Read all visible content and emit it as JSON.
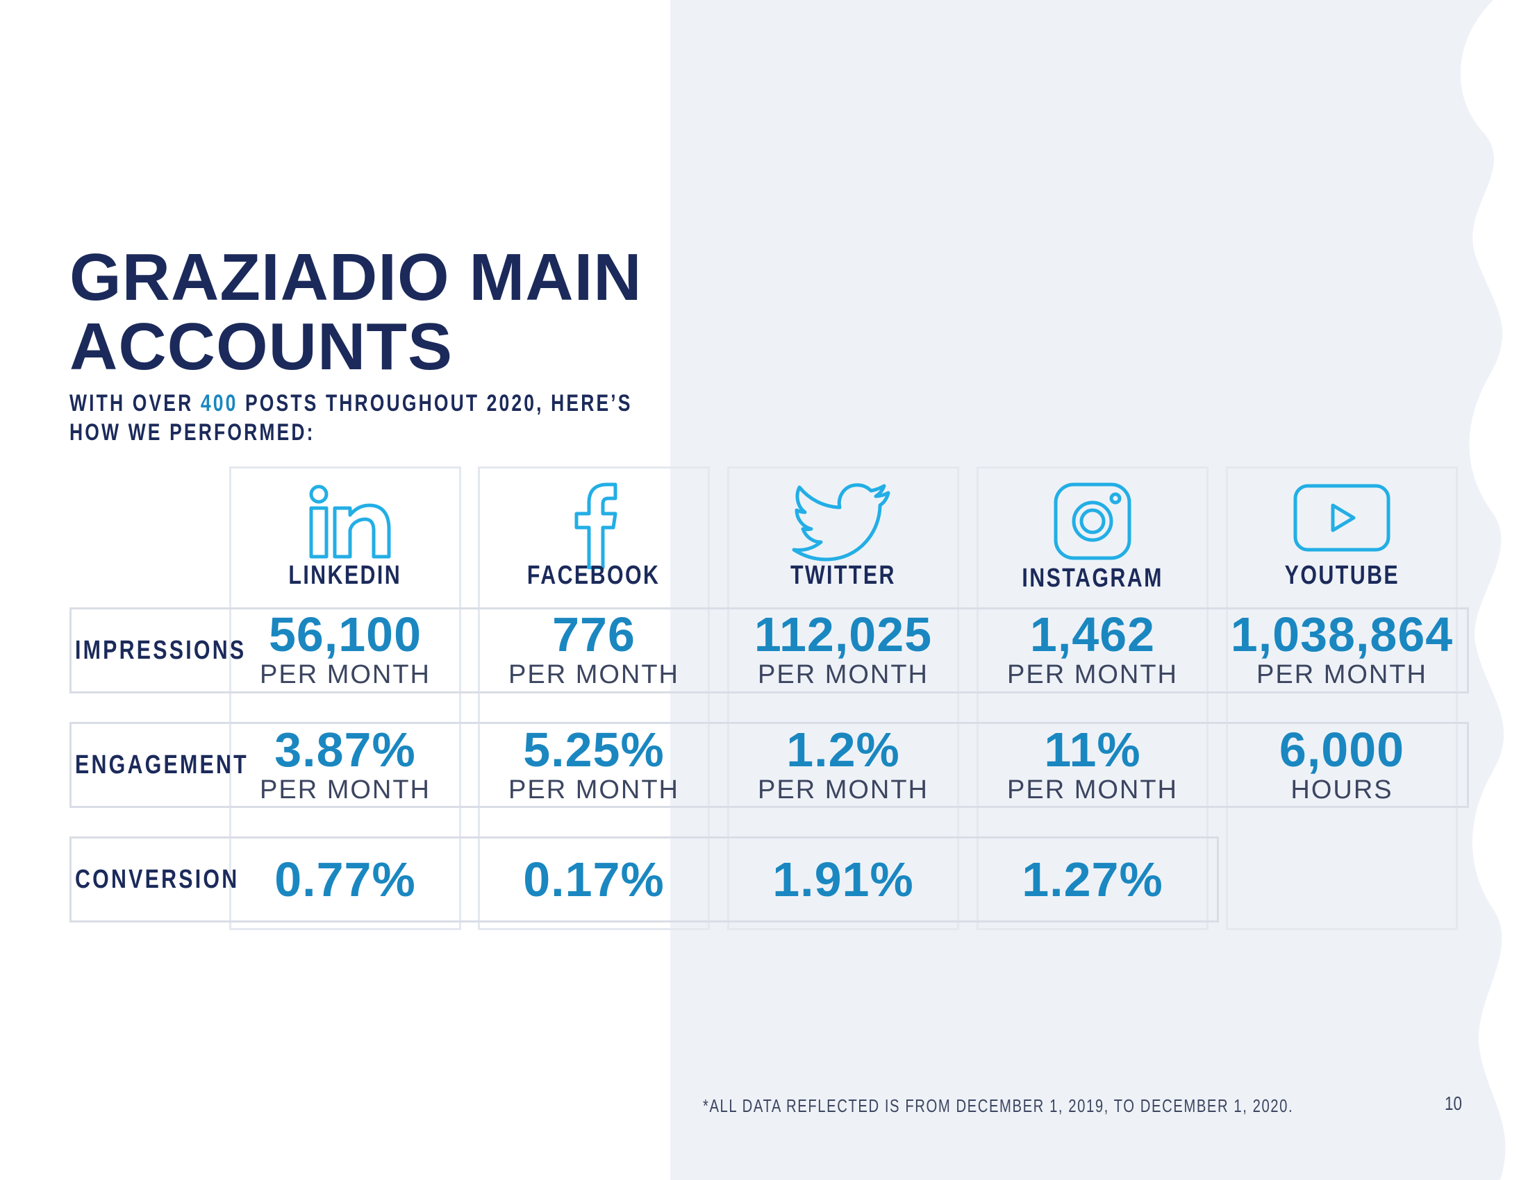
{
  "title": {
    "line1": "GRAZIADIO MAIN",
    "line2": "ACCOUNTS"
  },
  "subtitle": {
    "line1_pre": "WITH OVER",
    "line1_number": "400",
    "line1_post": "POSTS THROUGHOUT 2020, HERE’S",
    "line2": "HOW WE PERFORMED:"
  },
  "colors": {
    "navy": "#1b2a5a",
    "accent": "#1a87c0",
    "panel": "#eef2f7",
    "icon": "#23aee5"
  },
  "platforms": [
    {
      "name": "LINKEDIN",
      "icon": "linkedin-icon"
    },
    {
      "name": "FACEBOOK",
      "icon": "facebook-icon"
    },
    {
      "name": "TWITTER",
      "icon": "twitter-icon"
    },
    {
      "name": "INSTAGRAM",
      "icon": "instagram-icon"
    },
    {
      "name": "YOUTUBE",
      "icon": "youtube-icon"
    }
  ],
  "rows": {
    "impressions": {
      "label": "IMPRESSIONS",
      "cells": [
        {
          "value": "56,100",
          "unit": "PER MONTH"
        },
        {
          "value": "776",
          "unit": "PER MONTH"
        },
        {
          "value": "112,025",
          "unit": "PER MONTH"
        },
        {
          "value": "1,462",
          "unit": "PER MONTH"
        },
        {
          "value": "1,038,864",
          "unit": "PER MONTH"
        }
      ]
    },
    "engagement": {
      "label": "ENGAGEMENT",
      "cells": [
        {
          "value": "3.87%",
          "unit": "PER MONTH"
        },
        {
          "value": "5.25%",
          "unit": "PER MONTH"
        },
        {
          "value": "1.2%",
          "unit": "PER MONTH"
        },
        {
          "value": "11%",
          "unit": "PER MONTH"
        },
        {
          "value": "6,000",
          "unit": "HOURS"
        }
      ]
    },
    "conversion": {
      "label": "CONVERSION",
      "cells": [
        {
          "value": "0.77%"
        },
        {
          "value": "0.17%"
        },
        {
          "value": "1.91%"
        },
        {
          "value": "1.27%"
        }
      ]
    }
  },
  "footnote": "*ALL DATA REFLECTED IS FROM DECEMBER 1, 2019, TO DECEMBER 1, 2020.",
  "page_number": "10"
}
